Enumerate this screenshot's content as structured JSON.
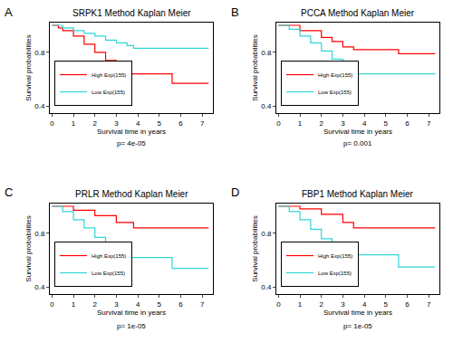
{
  "chart_data": [
    {
      "type": "line",
      "label": "A",
      "title": "SRPK1 Method Kaplan Meier",
      "x_label": "Survival time in years",
      "y_label": "Survival probabilities",
      "annotation": "p= 4e-05",
      "xlim": [
        -0.1,
        7.5
      ],
      "ylim": [
        0.35,
        1.02
      ],
      "xticks": [
        0,
        1,
        2,
        3,
        4,
        5,
        6,
        7
      ],
      "yticks": [
        0.4,
        0.8
      ],
      "legend": "lower left",
      "series": [
        {
          "name": "High Exp(155)",
          "color": "#ff0000",
          "line_style": "step",
          "x": [
            0,
            0.3,
            0.5,
            1,
            1.5,
            2,
            2.5,
            3,
            3.3,
            5.6,
            7.3
          ],
          "values": [
            1,
            0.98,
            0.96,
            0.92,
            0.86,
            0.8,
            0.74,
            0.68,
            0.64,
            0.57,
            0.57
          ]
        },
        {
          "name": "Low Exp(155)",
          "color": "#30d5d5",
          "line_style": "step",
          "x": [
            0,
            0.5,
            1,
            1.5,
            2,
            2.5,
            3,
            3.5,
            3.8,
            7.3
          ],
          "values": [
            1,
            0.98,
            0.96,
            0.94,
            0.92,
            0.89,
            0.87,
            0.85,
            0.83,
            0.83
          ]
        }
      ]
    },
    {
      "type": "line",
      "label": "B",
      "title": "PCCA Method Kaplan Meier",
      "x_label": "Survival time in years",
      "y_label": "Survival probabilities",
      "annotation": "p= 0.001",
      "xlim": [
        -0.1,
        7.5
      ],
      "ylim": [
        0.35,
        1.02
      ],
      "xticks": [
        0,
        1,
        2,
        3,
        4,
        5,
        6,
        7
      ],
      "yticks": [
        0.4,
        0.8
      ],
      "legend": "lower left",
      "series": [
        {
          "name": "High Exp(155)",
          "color": "#ff0000",
          "line_style": "step",
          "x": [
            0,
            1,
            2,
            2.5,
            3,
            3.5,
            5.6,
            7.3
          ],
          "values": [
            1,
            0.96,
            0.91,
            0.88,
            0.84,
            0.82,
            0.79,
            0.79
          ]
        },
        {
          "name": "Low Exp(155)",
          "color": "#30d5d5",
          "line_style": "step",
          "x": [
            0,
            0.5,
            1,
            1.5,
            2,
            2.5,
            3,
            3.5,
            7.3
          ],
          "values": [
            1,
            0.97,
            0.92,
            0.87,
            0.81,
            0.75,
            0.68,
            0.64,
            0.64
          ]
        }
      ]
    },
    {
      "type": "line",
      "label": "C",
      "title": "PRLR Method Kaplan Meier",
      "x_label": "Survival time in years",
      "y_label": "Survival probabilities",
      "annotation": "p= 1e-05",
      "xlim": [
        -0.1,
        7.5
      ],
      "ylim": [
        0.35,
        1.02
      ],
      "xticks": [
        0,
        1,
        2,
        3,
        4,
        5,
        6,
        7
      ],
      "yticks": [
        0.4,
        0.8
      ],
      "legend": "lower left",
      "series": [
        {
          "name": "High Exp(155)",
          "color": "#ff0000",
          "line_style": "step",
          "x": [
            0,
            1,
            2,
            3,
            3.8,
            7.3
          ],
          "values": [
            1,
            0.97,
            0.93,
            0.88,
            0.84,
            0.84
          ]
        },
        {
          "name": "Low Exp(155)",
          "color": "#30d5d5",
          "line_style": "step",
          "x": [
            0,
            0.5,
            1,
            1.5,
            2,
            2.5,
            3,
            3.5,
            5.6,
            7.3
          ],
          "values": [
            1,
            0.96,
            0.9,
            0.84,
            0.77,
            0.7,
            0.64,
            0.62,
            0.54,
            0.54
          ]
        }
      ]
    },
    {
      "type": "line",
      "label": "D",
      "title": "FBP1 Method Kaplan Meier",
      "x_label": "Survival time in years",
      "y_label": "Survival probabilities",
      "annotation": "p= 1e-05",
      "xlim": [
        -0.1,
        7.5
      ],
      "ylim": [
        0.35,
        1.02
      ],
      "xticks": [
        0,
        1,
        2,
        3,
        4,
        5,
        6,
        7
      ],
      "yticks": [
        0.4,
        0.8
      ],
      "legend": "lower left",
      "series": [
        {
          "name": "High Exp(155)",
          "color": "#ff0000",
          "line_style": "step",
          "x": [
            0,
            1,
            2,
            3,
            3.5,
            7.3
          ],
          "values": [
            1,
            0.98,
            0.94,
            0.88,
            0.84,
            0.84
          ]
        },
        {
          "name": "Low Exp(155)",
          "color": "#30d5d5",
          "line_style": "step",
          "x": [
            0,
            0.5,
            1,
            1.5,
            2,
            2.5,
            3,
            3.5,
            5.6,
            7.3
          ],
          "values": [
            1,
            0.96,
            0.9,
            0.83,
            0.76,
            0.71,
            0.66,
            0.64,
            0.55,
            0.55
          ]
        }
      ]
    }
  ]
}
